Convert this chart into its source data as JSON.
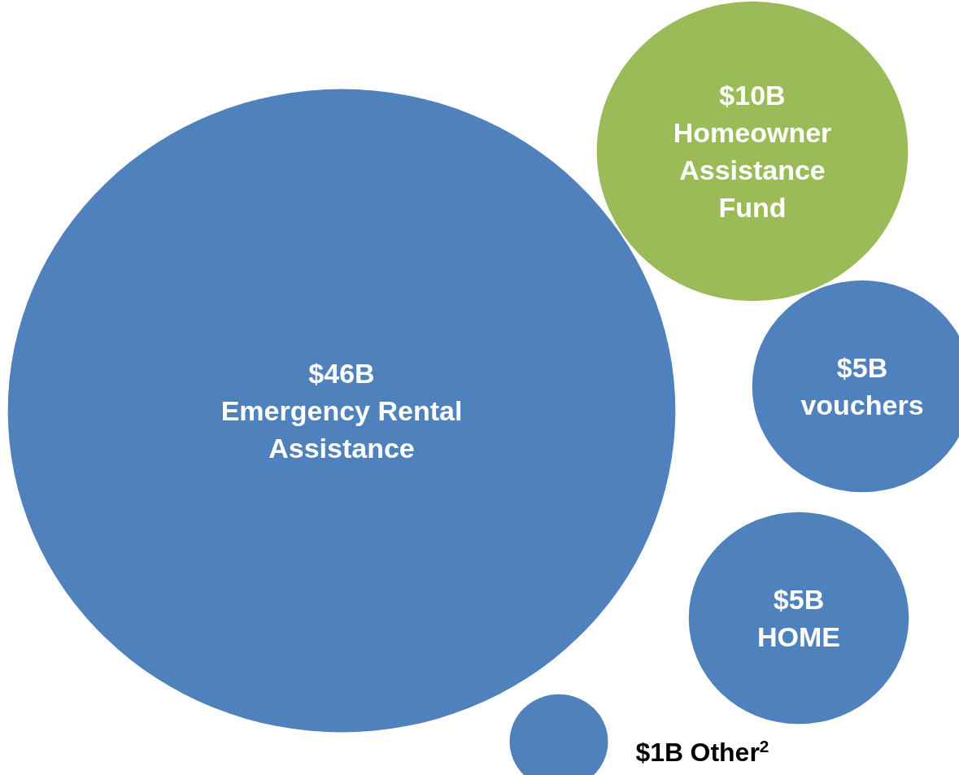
{
  "chart_data": {
    "type": "other",
    "categories": [
      "Emergency Rental Assistance",
      "Homeowner Assistance Fund",
      "vouchers",
      "HOME",
      "Other$^{2}$"
    ],
    "values": [
      46,
      10,
      5,
      5,
      1
    ],
    "value_labels": [
      "$46B",
      "$10B",
      "$5B",
      "$5B",
      "$1B"
    ],
    "colors": [
      "#4f81bd",
      "#9bbb59",
      "#4f81bd",
      "#4f81bd",
      "#4f81bd"
    ]
  }
}
